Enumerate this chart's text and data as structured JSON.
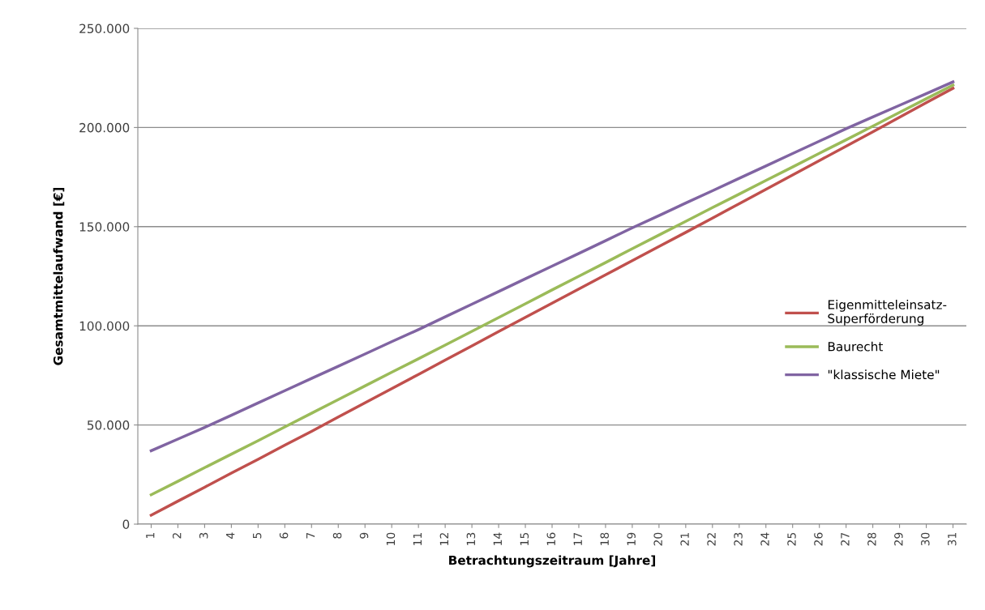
{
  "chart_data": {
    "type": "line",
    "xlabel": "Betrachtungszeitraum [Jahre]",
    "ylabel": "Gesamtmittelaufwand [€]",
    "categories": [
      "1",
      "2",
      "3",
      "4",
      "5",
      "6",
      "7",
      "8",
      "9",
      "10",
      "11",
      "12",
      "13",
      "14",
      "15",
      "16",
      "17",
      "18",
      "19",
      "20",
      "21",
      "22",
      "23",
      "24",
      "25",
      "26",
      "27",
      "28",
      "29",
      "30",
      "31"
    ],
    "series": [
      {
        "name": "Eigenmitteleinsatz-\nSuperförderung",
        "color": "#c0504d",
        "values": [
          4500,
          11600,
          18600,
          25700,
          32700,
          39800,
          46800,
          54000,
          61200,
          68300,
          75500,
          82700,
          89900,
          97100,
          104300,
          111400,
          118600,
          125700,
          132900,
          140000,
          147100,
          154300,
          161600,
          168800,
          176100,
          183300,
          190600,
          197800,
          205200,
          212500,
          219800
        ]
      },
      {
        "name": "Baurecht",
        "color": "#9bbb59",
        "values": [
          14800,
          21600,
          28500,
          35300,
          42100,
          49000,
          55900,
          62800,
          69700,
          76600,
          83400,
          90300,
          97200,
          104200,
          111100,
          118100,
          125000,
          131900,
          138900,
          145800,
          152700,
          159600,
          166400,
          173300,
          180100,
          187000,
          193800,
          200700,
          207600,
          214500,
          221400
        ]
      },
      {
        "name": "\"klassische Miete\"",
        "color": "#8064a2",
        "values": [
          37000,
          42900,
          48800,
          54900,
          61100,
          67300,
          73500,
          79600,
          85800,
          92000,
          98100,
          104500,
          110900,
          117300,
          123700,
          130100,
          136500,
          142900,
          149400,
          155600,
          161900,
          168100,
          174400,
          180600,
          186900,
          193100,
          199400,
          205300,
          211200,
          217100,
          223000
        ]
      }
    ],
    "ylim": [
      0,
      250000
    ],
    "yticks": [
      {
        "value": 0,
        "label": "0"
      },
      {
        "value": 50000,
        "label": "50.000"
      },
      {
        "value": 100000,
        "label": "100.000"
      },
      {
        "value": 150000,
        "label": "150.000"
      },
      {
        "value": 200000,
        "label": "200.000"
      },
      {
        "value": 250000,
        "label": "250.000"
      }
    ],
    "grid": "y",
    "legend": "right",
    "marker": "none",
    "line_style": "solid"
  }
}
